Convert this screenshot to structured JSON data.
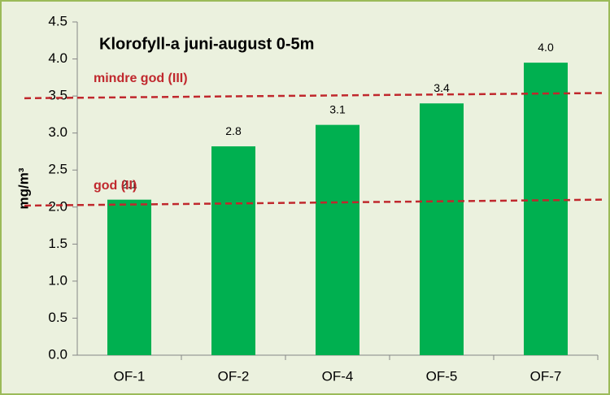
{
  "chart_data": {
    "type": "bar",
    "title": "Klorofyll-a juni-august 0-5m",
    "y_label": "mg/m³",
    "categories": [
      "OF-1",
      "OF-2",
      "OF-4",
      "OF-5",
      "OF-7"
    ],
    "values": [
      2.1,
      2.82,
      3.11,
      3.4,
      3.95
    ],
    "value_labels": [
      "2.1",
      "2.8",
      "3.1",
      "3.4",
      "4.0"
    ],
    "color": "#00b050",
    "ylim": [
      0,
      4.5
    ],
    "yticks": [
      {
        "value": 0,
        "label": "0.0"
      },
      {
        "value": 0.5,
        "label": "0.5"
      },
      {
        "value": 1,
        "label": "1.0"
      },
      {
        "value": 1.5,
        "label": "1.5"
      },
      {
        "value": 2,
        "label": "2.0"
      },
      {
        "value": 2.5,
        "label": "2.5"
      },
      {
        "value": 3,
        "label": "3.0"
      },
      {
        "value": 3.5,
        "label": "3.5"
      },
      {
        "value": 4,
        "label": "4.0"
      },
      {
        "value": 4.5,
        "label": "4.5"
      }
    ],
    "grid": false,
    "reference_lines": [
      {
        "label": "mindre god (III)",
        "y": [
          3.47,
          3.54
        ],
        "color": "#c0282d"
      },
      {
        "label": "god (II)",
        "y": [
          2.02,
          2.1
        ],
        "color": "#c0282d"
      }
    ]
  }
}
